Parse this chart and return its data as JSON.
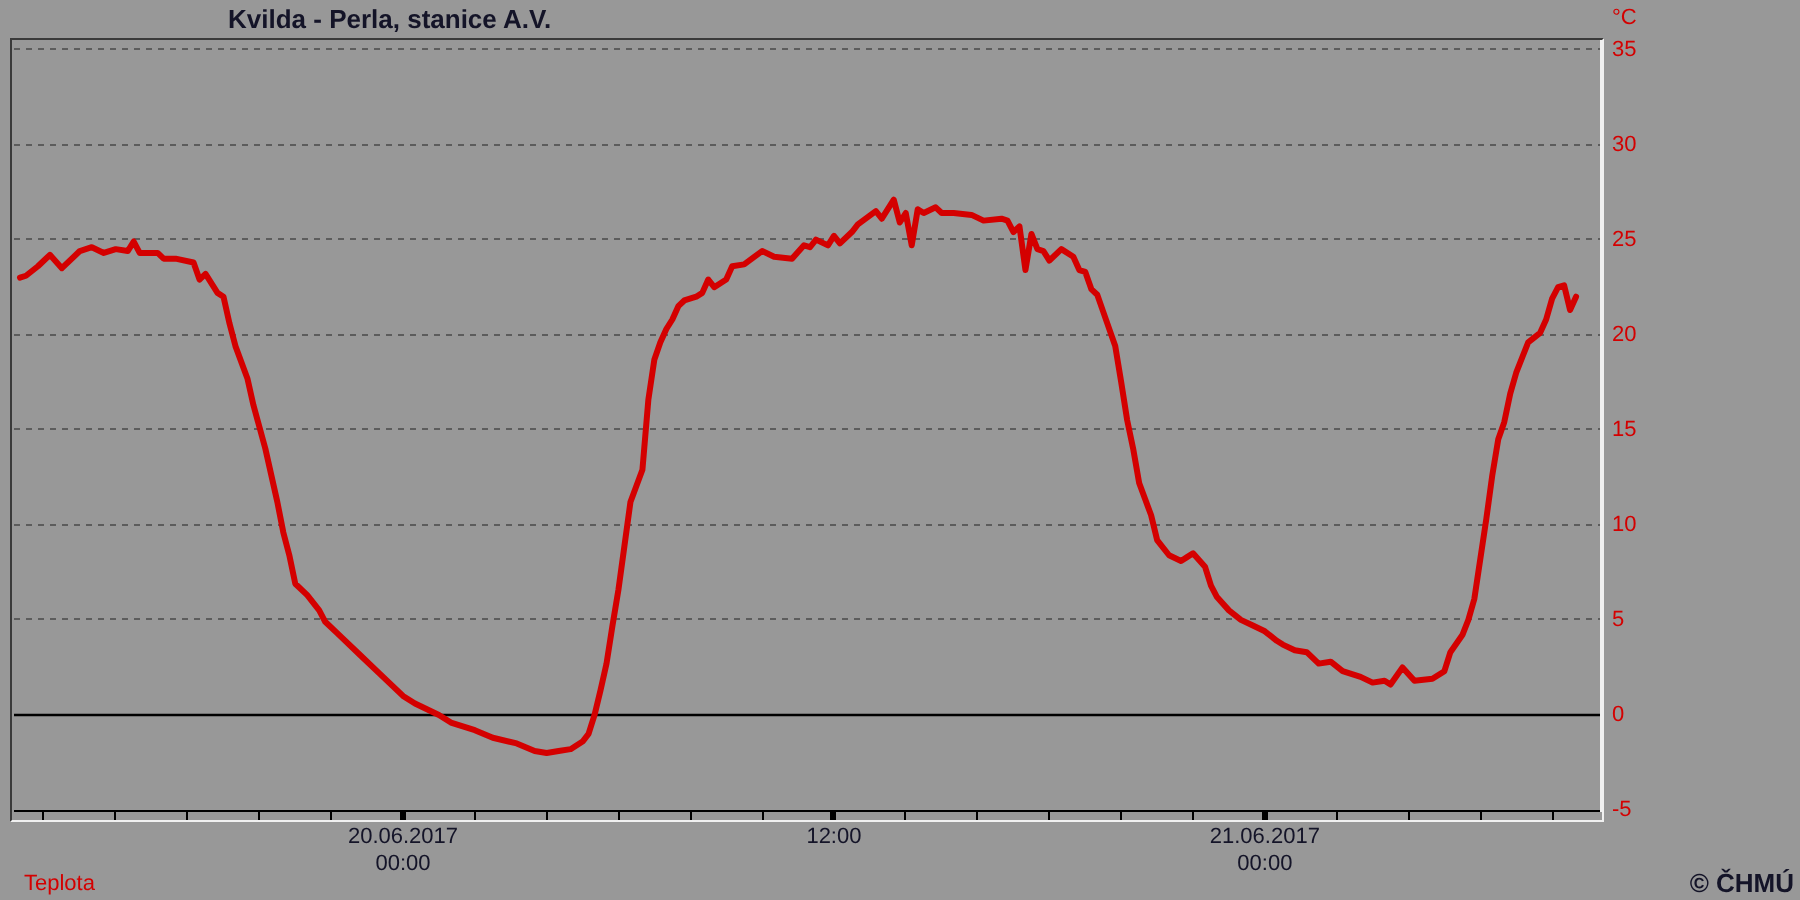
{
  "chart_data": {
    "type": "line",
    "title": "Kvilda - Perla, stanice A.V.",
    "ylabel": "°C",
    "annotations": [
      "© ČHMÚ"
    ],
    "x": [
      "2017-06-19T13:20",
      "2017-06-19T13:30",
      "2017-06-19T13:50",
      "2017-06-19T14:10",
      "2017-06-19T14:30",
      "2017-06-19T15:00",
      "2017-06-19T15:20",
      "2017-06-19T15:40",
      "2017-06-19T16:00",
      "2017-06-19T16:20",
      "2017-06-19T16:30",
      "2017-06-19T16:40",
      "2017-06-19T17:10",
      "2017-06-19T17:20",
      "2017-06-19T17:40",
      "2017-06-19T18:10",
      "2017-06-19T18:20",
      "2017-06-19T18:30",
      "2017-06-19T18:50",
      "2017-06-19T19:00",
      "2017-06-19T19:10",
      "2017-06-19T19:20",
      "2017-06-19T19:40",
      "2017-06-19T19:50",
      "2017-06-19T20:10",
      "2017-06-19T20:30",
      "2017-06-19T20:40",
      "2017-06-19T20:50",
      "2017-06-19T21:00",
      "2017-06-19T21:20",
      "2017-06-19T21:40",
      "2017-06-19T21:50",
      "2017-06-19T22:10",
      "2017-06-19T22:50",
      "2017-06-19T23:20",
      "2017-06-20T00:00",
      "2017-06-20T00:20",
      "2017-06-20T01:00",
      "2017-06-20T01:20",
      "2017-06-20T02:00",
      "2017-06-20T02:30",
      "2017-06-20T03:10",
      "2017-06-20T03:40",
      "2017-06-20T04:00",
      "2017-06-20T04:20",
      "2017-06-20T04:40",
      "2017-06-20T05:00",
      "2017-06-20T05:10",
      "2017-06-20T05:20",
      "2017-06-20T05:30",
      "2017-06-20T05:40",
      "2017-06-20T05:50",
      "2017-06-20T06:00",
      "2017-06-20T06:10",
      "2017-06-20T06:20",
      "2017-06-20T06:40",
      "2017-06-20T06:50",
      "2017-06-20T07:00",
      "2017-06-20T07:10",
      "2017-06-20T07:20",
      "2017-06-20T07:30",
      "2017-06-20T07:40",
      "2017-06-20T07:50",
      "2017-06-20T08:10",
      "2017-06-20T08:20",
      "2017-06-20T08:30",
      "2017-06-20T08:40",
      "2017-06-20T09:00",
      "2017-06-20T09:10",
      "2017-06-20T09:30",
      "2017-06-20T10:00",
      "2017-06-20T10:20",
      "2017-06-20T10:50",
      "2017-06-20T11:10",
      "2017-06-20T11:20",
      "2017-06-20T11:30",
      "2017-06-20T11:50",
      "2017-06-20T12:00",
      "2017-06-20T12:10",
      "2017-06-20T12:30",
      "2017-06-20T12:40",
      "2017-06-20T13:10",
      "2017-06-20T13:20",
      "2017-06-20T13:40",
      "2017-06-20T13:50",
      "2017-06-20T14:00",
      "2017-06-20T14:10",
      "2017-06-20T14:20",
      "2017-06-20T14:30",
      "2017-06-20T14:50",
      "2017-06-20T15:00",
      "2017-06-20T15:20",
      "2017-06-20T15:50",
      "2017-06-20T16:10",
      "2017-06-20T16:40",
      "2017-06-20T16:50",
      "2017-06-20T17:00",
      "2017-06-20T17:10",
      "2017-06-20T17:20",
      "2017-06-20T17:30",
      "2017-06-20T17:40",
      "2017-06-20T17:50",
      "2017-06-20T18:00",
      "2017-06-20T18:20",
      "2017-06-20T18:40",
      "2017-06-20T18:50",
      "2017-06-20T19:00",
      "2017-06-20T19:10",
      "2017-06-20T19:20",
      "2017-06-20T19:30",
      "2017-06-20T19:50",
      "2017-06-20T20:00",
      "2017-06-20T20:10",
      "2017-06-20T20:20",
      "2017-06-20T20:30",
      "2017-06-20T20:50",
      "2017-06-20T21:00",
      "2017-06-20T21:20",
      "2017-06-20T21:40",
      "2017-06-20T21:50",
      "2017-06-20T22:00",
      "2017-06-20T22:20",
      "2017-06-20T22:30",
      "2017-06-20T22:40",
      "2017-06-20T23:00",
      "2017-06-20T23:20",
      "2017-06-20T23:40",
      "2017-06-21T00:00",
      "2017-06-21T00:20",
      "2017-06-21T00:30",
      "2017-06-21T00:50",
      "2017-06-21T01:10",
      "2017-06-21T01:30",
      "2017-06-21T01:50",
      "2017-06-21T02:10",
      "2017-06-21T02:40",
      "2017-06-21T03:00",
      "2017-06-21T03:20",
      "2017-06-21T03:30",
      "2017-06-21T03:50",
      "2017-06-21T04:10",
      "2017-06-21T04:40",
      "2017-06-21T05:00",
      "2017-06-21T05:10",
      "2017-06-21T05:30",
      "2017-06-21T05:40",
      "2017-06-21T05:50",
      "2017-06-21T06:00",
      "2017-06-21T06:10",
      "2017-06-21T06:20",
      "2017-06-21T06:30",
      "2017-06-21T06:40",
      "2017-06-21T06:50",
      "2017-06-21T07:00",
      "2017-06-21T07:20",
      "2017-06-21T07:40",
      "2017-06-21T07:50",
      "2017-06-21T08:00",
      "2017-06-21T08:10",
      "2017-06-21T08:20",
      "2017-06-21T08:30",
      "2017-06-21T08:40"
    ],
    "series": [
      {
        "name": "Teplota",
        "color": "#d40000",
        "values": [
          23.0,
          23.1,
          23.6,
          24.2,
          23.5,
          24.4,
          24.6,
          24.3,
          24.5,
          24.4,
          24.9,
          24.3,
          24.3,
          24.0,
          24.0,
          23.8,
          22.9,
          23.2,
          22.2,
          22.0,
          20.6,
          19.4,
          17.7,
          16.3,
          14.0,
          11.2,
          9.6,
          8.4,
          6.9,
          6.3,
          5.5,
          4.9,
          4.3,
          3.1,
          2.2,
          1.0,
          0.6,
          0.0,
          -0.4,
          -0.8,
          -1.2,
          -1.5,
          -1.9,
          -2.0,
          -1.9,
          -1.8,
          -1.4,
          -1.0,
          0.0,
          1.3,
          2.7,
          4.7,
          6.6,
          8.9,
          11.2,
          12.9,
          16.6,
          18.7,
          19.6,
          20.3,
          20.8,
          21.5,
          21.8,
          22.0,
          22.2,
          22.9,
          22.5,
          22.9,
          23.6,
          23.7,
          24.4,
          24.1,
          24.0,
          24.7,
          24.6,
          25.0,
          24.7,
          25.2,
          24.8,
          25.4,
          25.8,
          26.5,
          26.1,
          27.1,
          25.9,
          26.4,
          24.7,
          26.6,
          26.4,
          26.7,
          26.4,
          26.4,
          26.3,
          26.0,
          26.1,
          26.0,
          25.4,
          25.7,
          23.4,
          25.3,
          24.5,
          24.4,
          23.9,
          24.5,
          24.1,
          23.4,
          23.3,
          22.4,
          22.1,
          21.2,
          19.4,
          17.5,
          15.5,
          14.0,
          12.2,
          10.5,
          9.2,
          8.4,
          8.1,
          8.3,
          8.5,
          7.8,
          6.8,
          6.2,
          5.5,
          5.0,
          4.7,
          4.4,
          3.9,
          3.7,
          3.4,
          3.3,
          2.7,
          2.8,
          2.3,
          2.0,
          1.7,
          1.8,
          1.6,
          2.5,
          1.8,
          1.9,
          2.3,
          3.3,
          4.2,
          5.0,
          6.1,
          8.2,
          10.3,
          12.6,
          14.5,
          15.4,
          16.9,
          18.0,
          19.6,
          20.1,
          20.8,
          21.9,
          22.5,
          22.6,
          21.3,
          22.0
        ]
      }
    ],
    "xlim": [
      "2017-06-19T13:10",
      "2017-06-21T09:20"
    ],
    "xticks": [
      {
        "value": "2017-06-19T14:00",
        "label": null
      },
      {
        "value": "2017-06-19T16:00",
        "label": null
      },
      {
        "value": "2017-06-19T18:00",
        "label": null
      },
      {
        "value": "2017-06-19T20:00",
        "label": null
      },
      {
        "value": "2017-06-19T22:00",
        "label": null
      },
      {
        "value": "2017-06-20T00:00",
        "label": "20.06.2017 00:00"
      },
      {
        "value": "2017-06-20T02:00",
        "label": null
      },
      {
        "value": "2017-06-20T04:00",
        "label": null
      },
      {
        "value": "2017-06-20T06:00",
        "label": null
      },
      {
        "value": "2017-06-20T08:00",
        "label": null
      },
      {
        "value": "2017-06-20T10:00",
        "label": null
      },
      {
        "value": "2017-06-20T12:00",
        "label": "12:00"
      },
      {
        "value": "2017-06-20T14:00",
        "label": null
      },
      {
        "value": "2017-06-20T16:00",
        "label": null
      },
      {
        "value": "2017-06-20T18:00",
        "label": null
      },
      {
        "value": "2017-06-20T20:00",
        "label": null
      },
      {
        "value": "2017-06-20T22:00",
        "label": null
      },
      {
        "value": "2017-06-21T00:00",
        "label": "21.06.2017 00:00"
      },
      {
        "value": "2017-06-21T02:00",
        "label": null
      },
      {
        "value": "2017-06-21T04:00",
        "label": null
      },
      {
        "value": "2017-06-21T06:00",
        "label": null
      },
      {
        "value": "2017-06-21T08:00",
        "label": null
      }
    ],
    "ylim": [
      -5,
      35.5
    ],
    "yticks": [
      -5,
      0,
      5,
      10,
      15,
      20,
      25,
      30,
      35
    ],
    "ref_lines": [
      {
        "axis": "y",
        "value": 0,
        "color": "#000000"
      }
    ],
    "grid": "y",
    "legend": "bottom left",
    "marker": "none",
    "line_style": "solid"
  }
}
